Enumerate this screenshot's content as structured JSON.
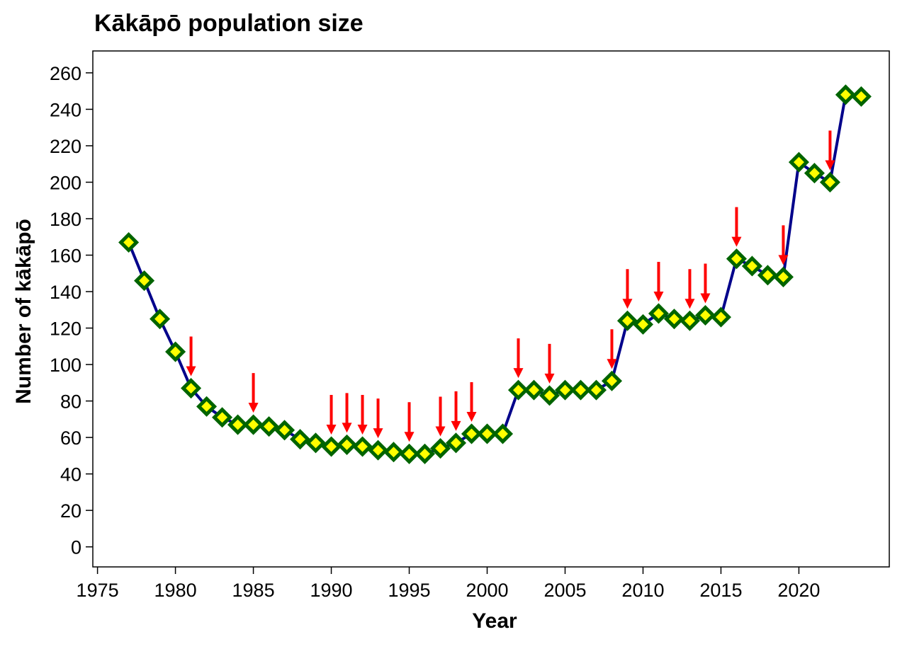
{
  "chart_data": {
    "type": "line",
    "title": "Kākāpō population size",
    "xlabel": "Year",
    "ylabel": "Number of kākāpō",
    "xlim": [
      1974.7,
      2025.8
    ],
    "ylim": [
      -11,
      272
    ],
    "x_ticks": [
      1975,
      1980,
      1985,
      1990,
      1995,
      2000,
      2005,
      2010,
      2015,
      2020
    ],
    "y_ticks": [
      0,
      20,
      40,
      60,
      80,
      100,
      120,
      140,
      160,
      180,
      200,
      220,
      240,
      260
    ],
    "grid": false,
    "legend": "none",
    "colors": {
      "line": "#00008b",
      "marker_fill": "#ffff00",
      "marker_edge": "#006400",
      "arrow": "#ff0000"
    },
    "series": [
      {
        "x": [
          1977,
          1978,
          1979,
          1980,
          1981,
          1982,
          1983,
          1984,
          1985,
          1986,
          1987,
          1988,
          1989,
          1990,
          1991,
          1992,
          1993,
          1994,
          1995,
          1996,
          1997,
          1998,
          1999,
          2000,
          2001,
          2002,
          2003,
          2004,
          2005,
          2006,
          2007,
          2008,
          2009,
          2010,
          2011,
          2012,
          2013,
          2014,
          2015,
          2016,
          2017,
          2018,
          2019,
          2020,
          2021,
          2022,
          2023,
          2024
        ],
        "values": [
          167,
          146,
          125,
          107,
          87,
          77,
          71,
          67,
          67,
          66,
          64,
          59,
          57,
          55,
          56,
          55,
          53,
          52,
          51,
          51,
          54,
          57,
          62,
          62,
          62,
          86,
          86,
          83,
          86,
          86,
          86,
          91,
          124,
          122,
          128,
          125,
          124,
          127,
          126,
          158,
          154,
          149,
          148,
          211,
          205,
          200,
          248,
          247
        ]
      }
    ],
    "annotation_years": [
      1981,
      1985,
      1990,
      1991,
      1992,
      1993,
      1995,
      1997,
      1998,
      1999,
      2002,
      2004,
      2008,
      2009,
      2011,
      2013,
      2014,
      2016,
      2019,
      2022
    ]
  }
}
